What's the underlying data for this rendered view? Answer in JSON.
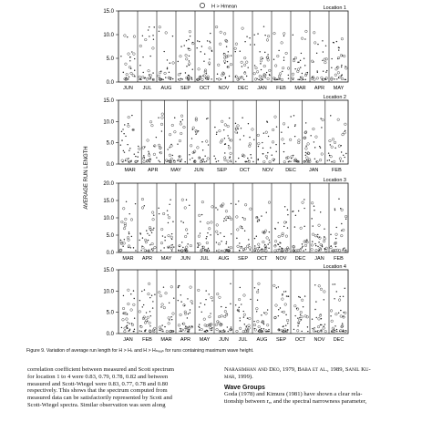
{
  "figure": {
    "legend_label": "H > Hmean",
    "ylabel": "AVERAGE RUN LENGTH",
    "panels": [
      {
        "location": "Location 1",
        "ymax": 15,
        "yticks": [
          "0.0",
          "5.0",
          "10.0",
          "15.0"
        ],
        "months": [
          "JUN",
          "JUL",
          "AUG",
          "SEP",
          "OCT",
          "NOV",
          "DEC",
          "JAN",
          "FEB",
          "MAR",
          "APR",
          "MAY"
        ]
      },
      {
        "location": "Location 2",
        "ymax": 15,
        "yticks": [
          "0.0",
          "5.0",
          "10.0",
          "15.0"
        ],
        "months": [
          "MAR",
          "APR",
          "MAY",
          "JUN",
          "SEP",
          "OCT",
          "NOV",
          "DEC",
          "JAN",
          "FEB"
        ]
      },
      {
        "location": "Location 3",
        "ymax": 20,
        "yticks": [
          "0.0",
          "5.0",
          "10.0",
          "15.0",
          "20.0"
        ],
        "months": [
          "MAR",
          "APR",
          "MAY",
          "JUN",
          "JUL",
          "AUG",
          "SEP",
          "OCT",
          "NOV",
          "DEC",
          "JAN",
          "FEB"
        ]
      },
      {
        "location": "Location 4",
        "ymax": 15,
        "yticks": [
          "0.0",
          "5.0",
          "10.0",
          "15.0"
        ],
        "months": [
          "JAN",
          "FEB",
          "MAR",
          "APR",
          "MAY",
          "JUN",
          "JUL",
          "AUG",
          "SEP",
          "OCT",
          "NOV",
          "DEC"
        ]
      }
    ]
  },
  "caption": "Figure 9.   Variation of average run length for H > Hₛ and H > Hₘₑₐₙ for runs containing maximum wave height.",
  "left_column": [
    "correlation coefficient between measured and Scott spectrum",
    "for location 1 to 4 were 0.83, 0.79, 0.78, 0.82 and between",
    "measured and Scott-Wiegel were 0.83, 0.77, 0.78 and 0.80",
    "respectively. This shows that the spectrum computed from",
    "measured data can be satisfactorily represented by Scott and",
    "Scott-Wiegel spectra. Similar observation was seen along"
  ],
  "right_column": {
    "line1": "Narasimhan and Deo, 1979, Baba et al., 1989, Sanil Ku-",
    "line2": "mar, 1999).",
    "heading": "Wave Groups",
    "line3": "Goda (1978) and Kimura (1981) have shown a clear rela-",
    "line4": "tionship between rₑₐ and the spectral narrowness parameter,"
  }
}
